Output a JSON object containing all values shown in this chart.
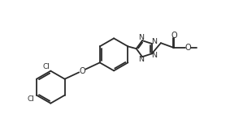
{
  "figsize": [
    2.83,
    1.57
  ],
  "dpi": 100,
  "lc": "#2a2a2a",
  "lw": 1.3,
  "xlim": [
    0,
    10
  ],
  "ylim": [
    0,
    5.6
  ]
}
